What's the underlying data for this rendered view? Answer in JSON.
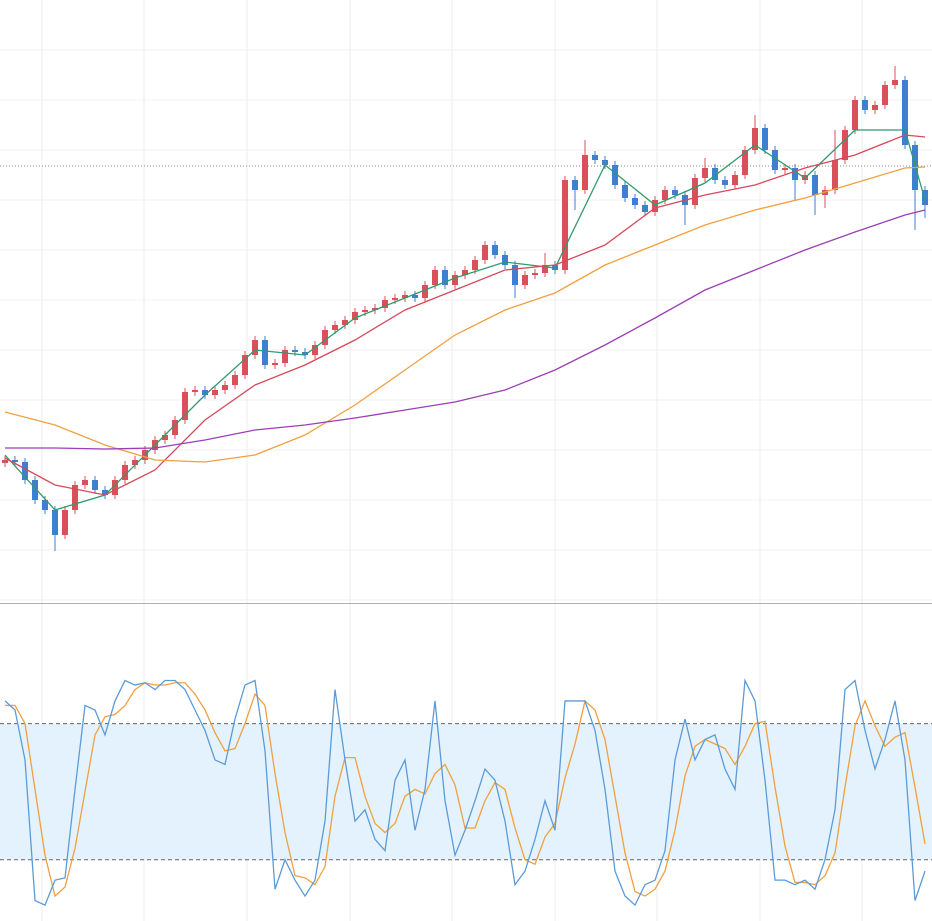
{
  "chart_data": {
    "type": "candlestick",
    "up_color": "#d9505a",
    "down_color": "#3f7fd0",
    "ylim": [
      0,
      603
    ],
    "yticks": [
      3,
      53,
      103,
      153,
      203,
      253,
      303,
      353,
      403,
      453,
      503,
      553
    ],
    "grid": true,
    "reference_line": {
      "value": 437,
      "color": "#888888"
    },
    "open": [
      140,
      143,
      141,
      123,
      103,
      93,
      68,
      93,
      118,
      123,
      113,
      108,
      123,
      138,
      143,
      153,
      163,
      168,
      183,
      211,
      213,
      208,
      213,
      218,
      228,
      248,
      263,
      238,
      240,
      253,
      251,
      248,
      258,
      273,
      278,
      283,
      291,
      293,
      295,
      303,
      305,
      308,
      305,
      318,
      333,
      318,
      328,
      333,
      343,
      358,
      348,
      338,
      318,
      328,
      330,
      338,
      333,
      423,
      413,
      448,
      443,
      438,
      418,
      405,
      398,
      391,
      403,
      413,
      408,
      398,
      425,
      435,
      423,
      418,
      428,
      453,
      475,
      453,
      433,
      435,
      423,
      428,
      408,
      413,
      443,
      473,
      503,
      493,
      498,
      518,
      523,
      458,
      413
    ],
    "high": [
      147,
      147,
      145,
      127,
      107,
      97,
      97,
      122,
      127,
      127,
      117,
      127,
      142,
      147,
      157,
      167,
      172,
      187,
      215,
      217,
      217,
      217,
      222,
      232,
      252,
      267,
      267,
      244,
      257,
      257,
      255,
      262,
      277,
      282,
      287,
      295,
      297,
      299,
      307,
      309,
      312,
      312,
      322,
      337,
      337,
      332,
      337,
      347,
      362,
      362,
      352,
      342,
      332,
      334,
      350,
      342,
      427,
      427,
      463,
      452,
      447,
      442,
      422,
      409,
      402,
      407,
      417,
      417,
      412,
      429,
      445,
      439,
      427,
      432,
      457,
      488,
      479,
      457,
      439,
      439,
      432,
      432,
      417,
      473,
      477,
      507,
      507,
      502,
      522,
      537,
      527,
      462,
      417
    ],
    "low": [
      136,
      137,
      119,
      99,
      89,
      52,
      64,
      89,
      114,
      109,
      104,
      104,
      119,
      134,
      139,
      149,
      159,
      164,
      179,
      207,
      204,
      204,
      209,
      214,
      224,
      244,
      234,
      234,
      236,
      247,
      244,
      244,
      254,
      269,
      274,
      279,
      287,
      289,
      291,
      299,
      301,
      301,
      301,
      314,
      314,
      314,
      324,
      329,
      339,
      344,
      334,
      305,
      314,
      324,
      326,
      329,
      329,
      393,
      409,
      439,
      434,
      414,
      401,
      394,
      387,
      387,
      399,
      404,
      378,
      394,
      421,
      419,
      414,
      414,
      424,
      449,
      449,
      429,
      429,
      403,
      419,
      388,
      395,
      409,
      439,
      469,
      489,
      489,
      494,
      514,
      454,
      373,
      385
    ],
    "close": [
      143,
      141,
      123,
      103,
      93,
      68,
      93,
      118,
      123,
      113,
      108,
      123,
      138,
      143,
      153,
      163,
      168,
      183,
      211,
      213,
      208,
      213,
      218,
      228,
      248,
      263,
      238,
      240,
      253,
      251,
      248,
      258,
      273,
      278,
      283,
      291,
      293,
      295,
      303,
      305,
      308,
      305,
      318,
      333,
      318,
      328,
      333,
      343,
      358,
      348,
      338,
      318,
      328,
      330,
      338,
      333,
      423,
      413,
      448,
      443,
      438,
      418,
      405,
      398,
      391,
      403,
      413,
      408,
      398,
      425,
      435,
      423,
      418,
      428,
      453,
      475,
      453,
      433,
      435,
      423,
      428,
      408,
      413,
      443,
      473,
      503,
      493,
      498,
      518,
      523,
      458,
      413,
      398
    ],
    "lines": [
      {
        "color": "#2e9b6a",
        "x": [
          0,
          5,
          10,
          15,
          20,
          25,
          30,
          35,
          40,
          45,
          50,
          55,
          60,
          65,
          70,
          75,
          80,
          85,
          90,
          92
        ],
        "values": [
          148,
          93,
          108,
          158,
          208,
          253,
          248,
          285,
          305,
          325,
          341,
          335,
          438,
          398,
          420,
          458,
          425,
          473,
          473,
          403
        ]
      },
      {
        "color": "#d64a5a",
        "x": [
          0,
          5,
          10,
          15,
          20,
          25,
          30,
          35,
          40,
          45,
          50,
          55,
          60,
          65,
          70,
          75,
          80,
          85,
          90,
          92
        ],
        "values": [
          145,
          118,
          108,
          133,
          183,
          218,
          238,
          263,
          293,
          313,
          333,
          338,
          358,
          395,
          408,
          418,
          435,
          448,
          468,
          466
        ]
      },
      {
        "color": "#f0a040",
        "x": [
          0,
          5,
          10,
          15,
          20,
          25,
          30,
          35,
          40,
          45,
          50,
          55,
          60,
          65,
          70,
          75,
          80,
          85,
          90,
          92
        ],
        "values": [
          191,
          178,
          158,
          143,
          141,
          148,
          168,
          198,
          233,
          268,
          293,
          310,
          338,
          358,
          378,
          393,
          405,
          420,
          435,
          436
        ]
      },
      {
        "color": "#9b3fb5",
        "x": [
          0,
          5,
          10,
          15,
          20,
          25,
          30,
          35,
          40,
          45,
          50,
          55,
          60,
          65,
          70,
          75,
          80,
          85,
          90,
          92
        ],
        "values": [
          155,
          155,
          154,
          155,
          163,
          173,
          178,
          185,
          193,
          201,
          213,
          233,
          258,
          285,
          313,
          333,
          353,
          371,
          388,
          393
        ]
      }
    ],
    "oscillator": {
      "ylim": [
        -7,
        112
      ],
      "levels": [
        20,
        80
      ],
      "band_color": "#e3f2fc",
      "series": [
        {
          "color": "#5b9bd8",
          "values": [
            90,
            86,
            64,
            2,
            0,
            11,
            12,
            51,
            88,
            86,
            75,
            90,
            99,
            97,
            98,
            95,
            99,
            99,
            95,
            86,
            77,
            64,
            62,
            82,
            97,
            99,
            68,
            7,
            20,
            11,
            4,
            11,
            37,
            95,
            64,
            37,
            42,
            29,
            24,
            55,
            64,
            33,
            51,
            90,
            46,
            22,
            33,
            46,
            60,
            55,
            37,
            9,
            15,
            29,
            46,
            33,
            90,
            90,
            90,
            77,
            51,
            15,
            4,
            0,
            9,
            11,
            24,
            64,
            82,
            64,
            73,
            75,
            60,
            51,
            99,
            90,
            55,
            11,
            11,
            9,
            11,
            7,
            20,
            42,
            95,
            99,
            77,
            60,
            73,
            90,
            64,
            2,
            15
          ]
        },
        {
          "color": "#f0a040",
          "values": [
            88,
            88,
            80,
            51,
            22,
            4,
            8,
            25,
            50,
            75,
            83,
            84,
            88,
            95,
            98,
            97,
            97,
            98,
            98,
            93,
            86,
            76,
            68,
            69,
            80,
            93,
            88,
            58,
            32,
            13,
            12,
            9,
            17,
            48,
            65,
            65,
            48,
            36,
            32,
            36,
            48,
            51,
            49,
            58,
            62,
            53,
            34,
            34,
            46,
            54,
            51,
            34,
            20,
            18,
            30,
            36,
            56,
            71,
            90,
            86,
            73,
            48,
            23,
            6,
            4,
            7,
            15,
            33,
            57,
            70,
            73,
            71,
            69,
            62,
            70,
            80,
            81,
            52,
            26,
            10,
            10,
            9,
            13,
            23,
            52,
            79,
            90,
            79,
            70,
            74,
            76,
            52,
            27
          ]
        }
      ]
    }
  }
}
